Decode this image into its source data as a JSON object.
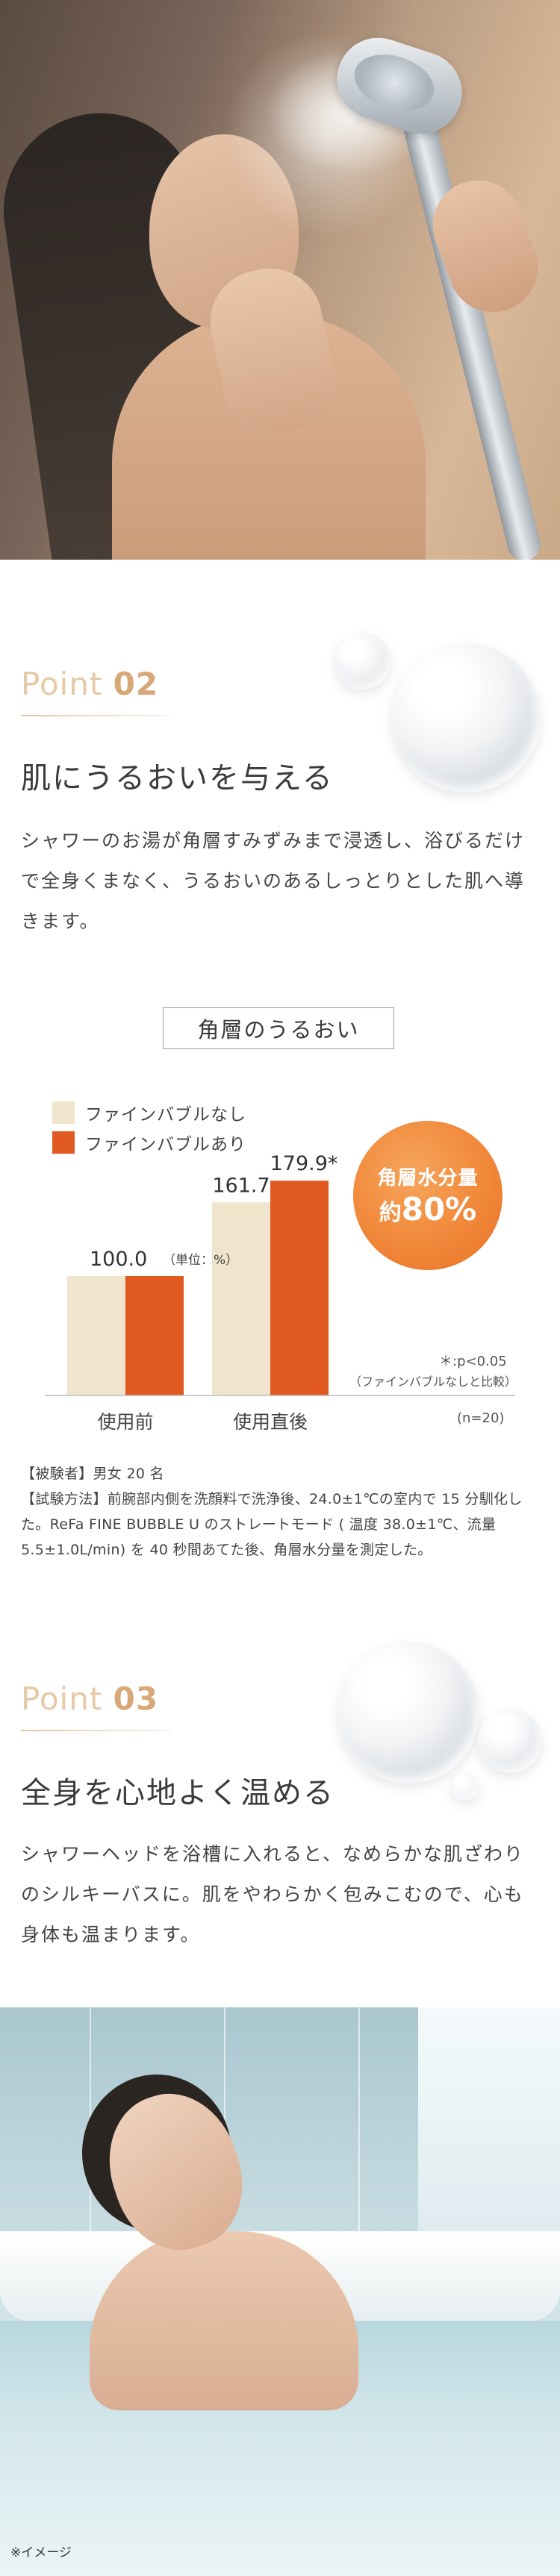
{
  "section_point02": {
    "label_word": "Point",
    "label_num": "02",
    "heading": "肌にうるおいを与える",
    "body": "シャワーのお湯が角層すみずみまで浸透し、浴びるだけで全身くまなく、うるおいのあるしっとりとした肌へ導きます。"
  },
  "chart_section": {
    "title": "角層のうるおい",
    "unit_note": "（単位：%）",
    "badge_line1": "角層水分量",
    "badge_prefix": "約",
    "badge_value": "80%",
    "significance": "＊:p<0.05",
    "comparison": "（ファインバブルなしと比較）",
    "n_note": "(n=20)",
    "colors": {
      "without": "#f0e4cc",
      "with": "#e05a22",
      "badge": "#f18a3c"
    }
  },
  "chart_data": {
    "type": "bar",
    "categories": [
      "使用前",
      "使用直後"
    ],
    "series": [
      {
        "name": "ファインバブルなし",
        "values": [
          100.0,
          161.7
        ]
      },
      {
        "name": "ファインバブルあり",
        "values": [
          100.0,
          179.9
        ]
      }
    ],
    "data_labels": [
      "100.0",
      "161.7",
      "179.9*"
    ],
    "ylim": [
      0,
      200
    ],
    "grid": false,
    "legend": "top-left"
  },
  "test_notes": {
    "subjects": "【被験者】男女 20 名",
    "method": "【試験方法】前腕部内側を洗顔料で洗浄後、24.0±1℃の室内で 15 分馴化した。ReFa FINE BUBBLE U のストレートモード ( 温度 38.0±1℃、流量 5.5±1.0L/min) を 40 秒間あてた後、角層水分量を測定した。"
  },
  "section_point03": {
    "label_word": "Point",
    "label_num": "03",
    "heading": "全身を心地よく温める",
    "body": "シャワーヘッドを浴槽に入れると、なめらかな肌ざわりのシルキーバスに。肌をやわらかく包みこむので、心も身体も温まります。"
  },
  "bath_caption": "※イメージ"
}
